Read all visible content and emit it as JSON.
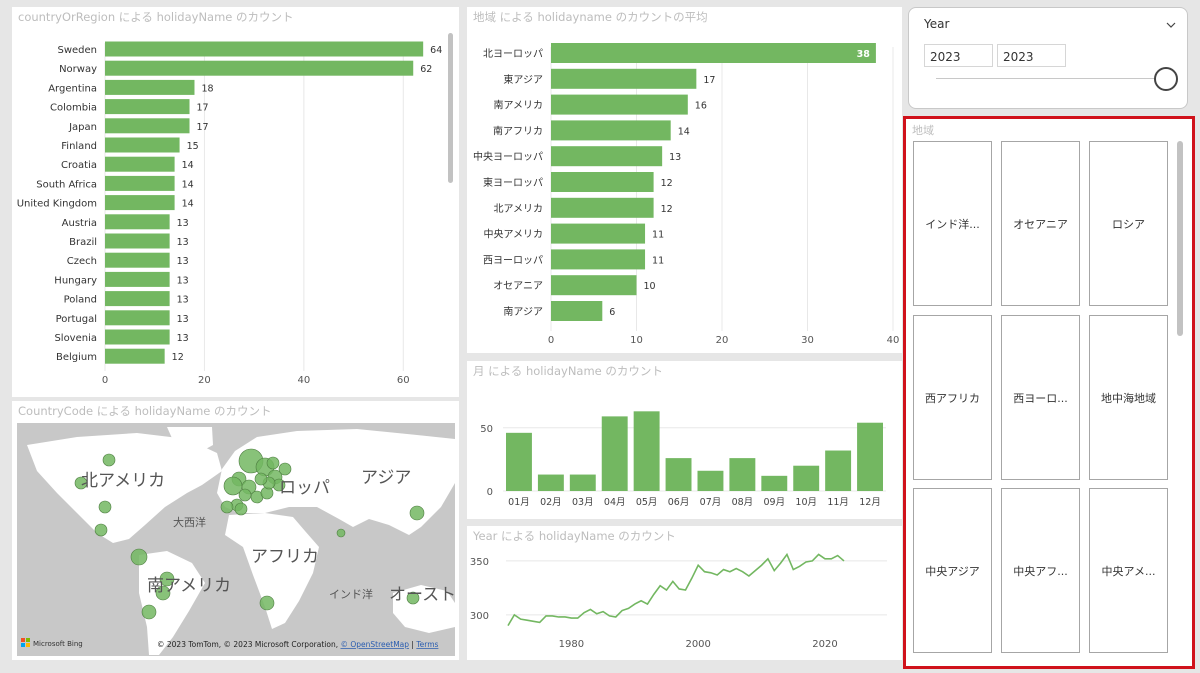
{
  "country_chart": {
    "title": "countryOrRegion による holidayName のカウント",
    "chart_data": {
      "type": "bar",
      "orientation": "horizontal",
      "categories": [
        "Sweden",
        "Norway",
        "Argentina",
        "Colombia",
        "Japan",
        "Finland",
        "Croatia",
        "South Africa",
        "United Kingdom",
        "Austria",
        "Brazil",
        "Czech",
        "Hungary",
        "Poland",
        "Portugal",
        "Slovenia",
        "Belgium"
      ],
      "values": [
        64,
        62,
        18,
        17,
        17,
        15,
        14,
        14,
        14,
        13,
        13,
        13,
        13,
        13,
        13,
        13,
        12
      ],
      "xlim": [
        0,
        70
      ],
      "xticks": [
        0,
        20,
        40,
        60
      ],
      "color": "#73b761"
    }
  },
  "region_chart": {
    "title": "地域 による holidayname のカウントの平均",
    "chart_data": {
      "type": "bar",
      "orientation": "horizontal",
      "categories": [
        "北ヨーロッパ",
        "東アジア",
        "南アメリカ",
        "南アフリカ",
        "中央ヨーロッパ",
        "東ヨーロッパ",
        "北アメリカ",
        "中央アメリカ",
        "西ヨーロッパ",
        "オセアニア",
        "南アジア"
      ],
      "values": [
        38,
        17,
        16,
        14,
        13,
        12,
        12,
        11,
        11,
        10,
        6
      ],
      "xlim": [
        0,
        40
      ],
      "xticks": [
        0,
        10,
        20,
        30,
        40
      ],
      "color": "#73b761"
    }
  },
  "month_chart": {
    "title": "月 による holidayName のカウント",
    "chart_data": {
      "type": "bar",
      "categories": [
        "01月",
        "02月",
        "03月",
        "04月",
        "05月",
        "06月",
        "07月",
        "08月",
        "09月",
        "10月",
        "11月",
        "12月"
      ],
      "values": [
        46,
        13,
        13,
        59,
        63,
        26,
        16,
        26,
        12,
        20,
        32,
        54
      ],
      "ylim": [
        0,
        68
      ],
      "yticks": [
        0,
        50
      ],
      "color": "#73b761"
    }
  },
  "year_chart": {
    "title": "Year による holidayName のカウント",
    "chart_data": {
      "type": "line",
      "x": [
        1970,
        1971,
        1972,
        1973,
        1974,
        1975,
        1976,
        1977,
        1978,
        1979,
        1980,
        1981,
        1982,
        1983,
        1984,
        1985,
        1986,
        1987,
        1988,
        1989,
        1990,
        1991,
        1992,
        1993,
        1994,
        1995,
        1996,
        1997,
        1998,
        1999,
        2000,
        2001,
        2002,
        2003,
        2004,
        2005,
        2006,
        2007,
        2008,
        2009,
        2010,
        2011,
        2012,
        2013,
        2014,
        2015,
        2016,
        2017,
        2018,
        2019,
        2020,
        2021,
        2022,
        2023
      ],
      "y": [
        290,
        300,
        296,
        295,
        294,
        293,
        299,
        299,
        298,
        298,
        297,
        297,
        302,
        305,
        301,
        303,
        299,
        298,
        304,
        306,
        310,
        313,
        310,
        319,
        327,
        323,
        331,
        324,
        323,
        334,
        346,
        340,
        339,
        337,
        342,
        340,
        343,
        340,
        336,
        341,
        346,
        352,
        341,
        348,
        356,
        342,
        345,
        349,
        350,
        356,
        352,
        352,
        355,
        350
      ],
      "xticks": [
        1980,
        2000,
        2020
      ],
      "yticks": [
        300,
        350
      ],
      "ylim": [
        285,
        362
      ],
      "color": "#73b761"
    }
  },
  "map": {
    "title": "CountryCode による holidayName のカウント",
    "labels": {
      "north_america": "北アメリカ",
      "europe": "ロッパ",
      "asia": "アジア",
      "atlantic": "大西洋",
      "africa": "アフリカ",
      "south_america": "南アメリカ",
      "indian_ocean": "インド洋",
      "oceania": "オースト"
    },
    "attribution": "© 2023 TomTom, © 2023 Microsoft Corporation,",
    "osm_link": "© OpenStreetMap",
    "terms_link": "Terms",
    "bing_logo": "Microsoft Bing",
    "bubble_color": "#73b761",
    "land_color": "#ffffff",
    "water_color": "#c8c8c8"
  },
  "year_slicer": {
    "label": "Year",
    "from": "2023",
    "to": "2023",
    "position": 1.0
  },
  "region_slicer": {
    "title": "地域",
    "tiles": [
      "インド洋...",
      "オセアニア",
      "ロシア",
      "西アフリカ",
      "西ヨーロ...",
      "地中海地域",
      "中央アジア",
      "中央アフ...",
      "中央アメ..."
    ],
    "highlight_color": "#d0121b"
  }
}
